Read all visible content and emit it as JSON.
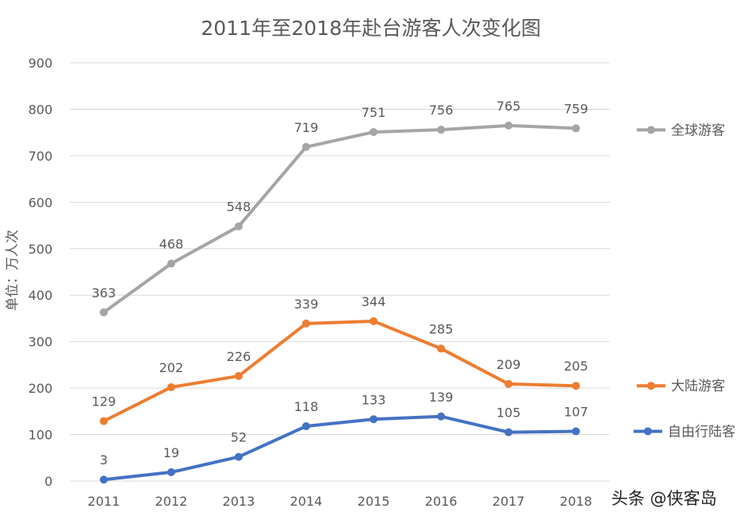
{
  "chart_data": {
    "type": "line",
    "title": "2011年至2018年赴台游客人次变化图",
    "ylabel": "单位：万人次",
    "xlabel": "",
    "categories": [
      "2011",
      "2012",
      "2013",
      "2014",
      "2015",
      "2016",
      "2017",
      "2018"
    ],
    "yticks": [
      "0",
      "100",
      "200",
      "300",
      "400",
      "500",
      "600",
      "700",
      "800",
      "900"
    ],
    "ylim": [
      0,
      900
    ],
    "grid": true,
    "legend_placement": "right",
    "series": [
      {
        "name": "全球游客",
        "color": "#A5A5A5",
        "values": [
          363,
          468,
          548,
          719,
          751,
          756,
          765,
          759
        ]
      },
      {
        "name": "大陆游客",
        "color": "#ED7D31",
        "values": [
          129,
          202,
          226,
          339,
          344,
          285,
          209,
          205
        ]
      },
      {
        "name": "自由行陆客",
        "color": "#4472C4",
        "values": [
          3,
          19,
          52,
          118,
          133,
          139,
          105,
          107
        ]
      }
    ]
  },
  "watermark": "头条 @侠客岛"
}
